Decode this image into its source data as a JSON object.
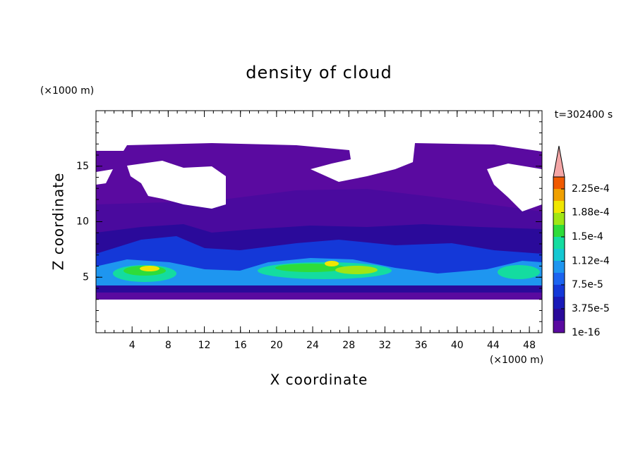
{
  "chart_data": {
    "type": "contour",
    "title": "density of cloud",
    "x_label": "X coordinate",
    "y_label": "Z coordinate",
    "x_unit": "(×1000 m)",
    "y_unit": "(×1000 m)",
    "annotation": "t=302400 s",
    "xlim": [
      0,
      49.4
    ],
    "ylim": [
      0,
      20
    ],
    "xticks": [
      4,
      8,
      12,
      16,
      20,
      24,
      28,
      32,
      36,
      40,
      44,
      48
    ],
    "yticks": [
      5,
      10,
      15
    ],
    "colorbar": {
      "clim": [
        1e-16,
        0.00024375
      ],
      "ticks": [
        {
          "value": 1e-16,
          "label": "1e-16"
        },
        {
          "value": 3.75e-05,
          "label": "3.75e-5"
        },
        {
          "value": 7.5e-05,
          "label": "7.5e-5"
        },
        {
          "value": 0.000112,
          "label": "1.12e-4"
        },
        {
          "value": 0.00015,
          "label": "1.5e-4"
        },
        {
          "value": 0.000188,
          "label": "1.88e-4"
        },
        {
          "value": 0.000225,
          "label": "2.25e-4"
        }
      ],
      "colors": [
        "#5a0aa0",
        "#2a0a9a",
        "#1a1ab8",
        "#1438d8",
        "#1c64f0",
        "#1e96f0",
        "#14c8d2",
        "#14dca0",
        "#2edc3a",
        "#a0e614",
        "#f0e600",
        "#f0a000",
        "#f05a00"
      ],
      "extend_color": "#f4a6a6"
    }
  }
}
